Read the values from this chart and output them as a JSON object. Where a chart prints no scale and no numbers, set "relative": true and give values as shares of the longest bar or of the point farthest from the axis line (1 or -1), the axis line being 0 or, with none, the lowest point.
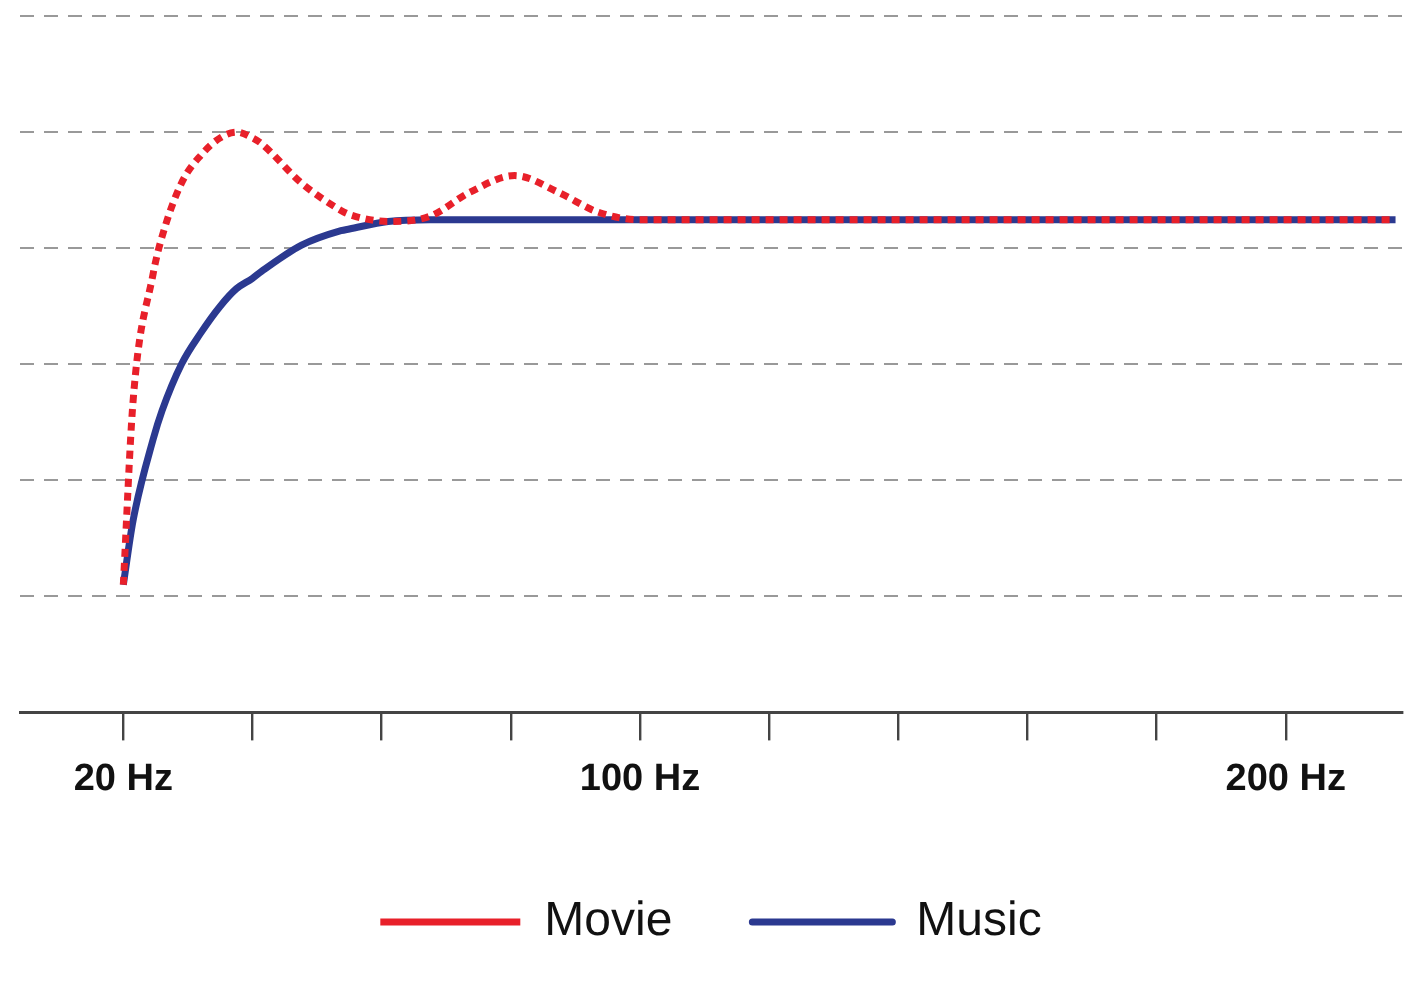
{
  "chart_data": {
    "type": "line",
    "relative": true,
    "x": [
      20,
      21.5,
      24.6,
      26,
      29,
      32,
      35,
      37.5,
      40,
      41.4,
      47.6,
      53.7,
      55,
      61,
      67.5,
      73.6,
      80.6,
      87.4,
      93.5,
      100,
      217
    ],
    "xlim": [
      4,
      218
    ],
    "xticks": [
      {
        "value": 20,
        "label": "20 Hz"
      },
      {
        "value": 40,
        "label": null
      },
      {
        "value": 60,
        "label": null
      },
      {
        "value": 80,
        "label": null
      },
      {
        "value": 100,
        "label": "100 Hz"
      },
      {
        "value": 120,
        "label": null
      },
      {
        "value": 140,
        "label": null
      },
      {
        "value": 160,
        "label": null
      },
      {
        "value": 180,
        "label": null
      },
      {
        "value": 200,
        "label": "200 Hz"
      }
    ],
    "series": [
      {
        "name": "Movie",
        "color": "#e8202a",
        "line_style": "dotted",
        "values": [
          0.22,
          0.535,
          0.755,
          0.82,
          0.912,
          0.96,
          0.99,
          1,
          0.99,
          0.98,
          0.912,
          0.865,
          0.858,
          0.846,
          0.855,
          0.896,
          0.925,
          0.896,
          0.862,
          0.849,
          0.849
        ]
      },
      {
        "name": "Music",
        "color": "#2b3990",
        "line_style": "solid",
        "values": [
          0.22,
          0.33,
          0.47,
          0.52,
          0.6,
          0.654,
          0.7,
          0.73,
          0.748,
          0.76,
          0.805,
          0.83,
          0.833,
          0.846,
          0.849,
          0.849,
          0.849,
          0.849,
          0.849,
          0.849,
          0.849
        ]
      }
    ],
    "marker": "none",
    "grid": "y",
    "legend": "bottom"
  }
}
